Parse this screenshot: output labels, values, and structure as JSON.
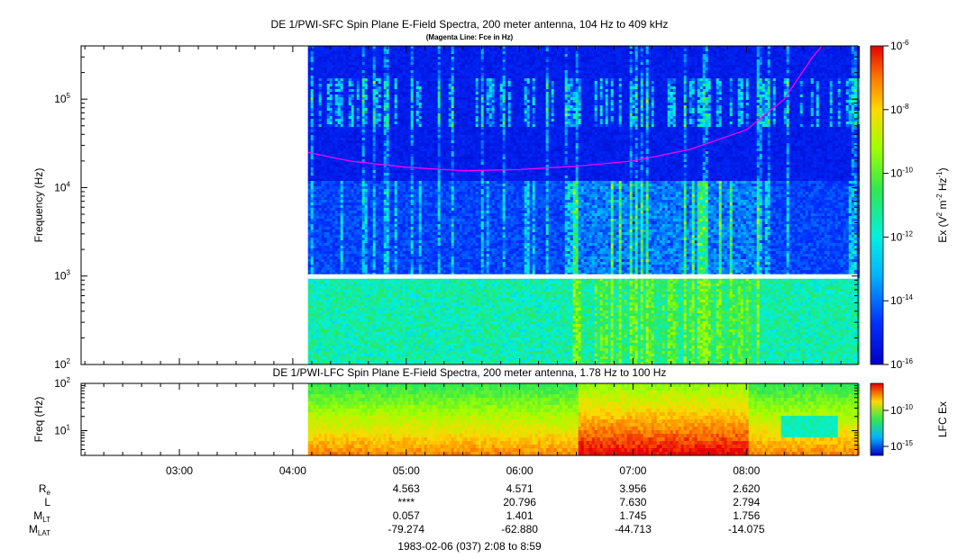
{
  "figure": {
    "date_range": "1983-02-06 (037) 2:08 to 8:59",
    "color_high": "#e60000",
    "color_low": "#0000cc"
  },
  "chart_data": [
    {
      "type": "heatmap",
      "title": "DE 1/PWI-SFC  Spin Plane E-Field Spectra, 200 meter antenna, 104 Hz to 409 kHz",
      "subtitle": "(Magenta Line: Fce in Hz)",
      "ylabel": "Frequency (Hz)",
      "yscale": "log",
      "ylim": [
        100,
        400000
      ],
      "yticks": [
        {
          "value": 100,
          "base": "10",
          "exp": "2"
        },
        {
          "value": 1000,
          "base": "10",
          "exp": "3"
        },
        {
          "value": 10000,
          "base": "10",
          "exp": "4"
        },
        {
          "value": 100000,
          "base": "10",
          "exp": "5"
        }
      ],
      "data_start": "04:08",
      "data_gap_hz": 1000,
      "colorbar": {
        "label_main": "Ex (V",
        "label_sup1": "2",
        "label_mid": " m",
        "label_sup2": "-2",
        "label_end": " Hz",
        "label_sup3": "-1",
        "label_close": ")",
        "scale": "log",
        "range": [
          1e-16,
          1e-06
        ],
        "ticks": [
          {
            "value": 1e-06,
            "base": "10",
            "exp": "-6"
          },
          {
            "value": 1e-08,
            "base": "10",
            "exp": "-8"
          },
          {
            "value": 1e-10,
            "base": "10",
            "exp": "-10"
          },
          {
            "value": 1e-12,
            "base": "10",
            "exp": "-12"
          },
          {
            "value": 1e-14,
            "base": "10",
            "exp": "-14"
          },
          {
            "value": 1e-16,
            "base": "10",
            "exp": "-16"
          }
        ]
      },
      "fce_line": {
        "color": "#ff00ff",
        "points": [
          {
            "t": "04:08",
            "hz": 25000
          },
          {
            "t": "04:30",
            "hz": 20000
          },
          {
            "t": "05:00",
            "hz": 17000
          },
          {
            "t": "05:30",
            "hz": 15500
          },
          {
            "t": "06:00",
            "hz": 16000
          },
          {
            "t": "06:30",
            "hz": 17500
          },
          {
            "t": "07:00",
            "hz": 20000
          },
          {
            "t": "07:30",
            "hz": 27000
          },
          {
            "t": "08:00",
            "hz": 45000
          },
          {
            "t": "08:20",
            "hz": 100000
          },
          {
            "t": "08:35",
            "hz": 300000
          },
          {
            "t": "08:40",
            "hz": 409000
          }
        ]
      }
    },
    {
      "type": "heatmap",
      "title": "DE 1/PWI-LFC  Spin Plane E-Field Spectra, 200 meter antenna, 1.78 Hz to 100 Hz",
      "ylabel": "Freq (Hz)",
      "yscale": "log",
      "ylim": [
        3,
        100
      ],
      "yticks": [
        {
          "value": 10,
          "base": "10",
          "exp": "1"
        },
        {
          "value": 100,
          "base": "10",
          "exp": "2"
        }
      ],
      "colorbar": {
        "label": "LFC Ex",
        "scale": "log",
        "ticks": [
          {
            "value": 1e-10,
            "base": "10",
            "exp": "-10"
          },
          {
            "value": 1e-15,
            "base": "10",
            "exp": "-15"
          }
        ]
      }
    }
  ],
  "time_axis": {
    "range": [
      "02:08",
      "08:59"
    ],
    "ticks": [
      {
        "value": "03:00",
        "label": "03:00"
      },
      {
        "value": "04:00",
        "label": "04:00"
      },
      {
        "value": "05:00",
        "label": "05:00"
      },
      {
        "value": "06:00",
        "label": "06:00"
      },
      {
        "value": "07:00",
        "label": "07:00"
      },
      {
        "value": "08:00",
        "label": "08:00"
      }
    ]
  },
  "ephemeris": {
    "rows": [
      {
        "name": "R",
        "sub": "e",
        "values": [
          "4.563",
          "4.571",
          "3.956",
          "2.620"
        ]
      },
      {
        "name": "L",
        "sub": "",
        "values": [
          "****",
          "20.796",
          "7.630",
          "2.794"
        ]
      },
      {
        "name": "M",
        "sub": "LT",
        "values": [
          "0.057",
          "1.401",
          "1.745",
          "1.756"
        ]
      },
      {
        "name": "M",
        "sub": "LAT",
        "values": [
          "-79.274",
          "-62.880",
          "-44.713",
          "-14.075"
        ]
      }
    ]
  }
}
